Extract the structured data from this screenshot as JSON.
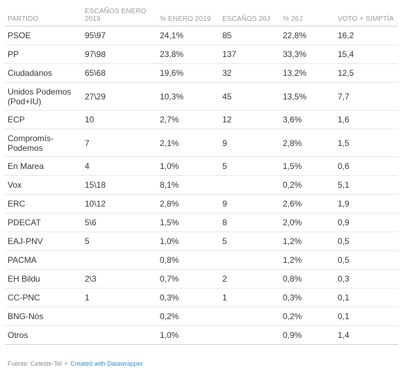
{
  "chart_data": {
    "type": "table",
    "columns": [
      "PARTIDO",
      "ESCAÑOS ENERO 2019",
      "% ENERO 2019",
      "ESCAÑOS 26J",
      "% 26J",
      "VOTO + SIMPTÍA"
    ],
    "rows": [
      [
        "PSOE",
        "95\\97",
        "24,1%",
        "85",
        "22,8%",
        "16,2"
      ],
      [
        "PP",
        "97\\98",
        "23,8%",
        "137",
        "33,3%",
        "15,4"
      ],
      [
        "Ciudadanos",
        "65\\68",
        "19,6%",
        "32",
        "13,2%",
        "12,5"
      ],
      [
        "Unidos Podemos (Pod+IU)",
        "27\\29",
        "10,3%",
        "45",
        "13,5%",
        "7,7"
      ],
      [
        "ECP",
        "10",
        "2,7%",
        "12",
        "3,6%",
        "1,6"
      ],
      [
        "Compromís-Podemos",
        "7",
        "2,1%",
        "9",
        "2,8%",
        "1,5"
      ],
      [
        "En Marea",
        "4",
        "1,0%",
        "5",
        "1,5%",
        "0,6"
      ],
      [
        "Vox",
        "15\\18",
        "8,1%",
        "",
        "0,2%",
        "5,1"
      ],
      [
        "ERC",
        "10\\12",
        "2,8%",
        "9",
        "2,6%",
        "1,9"
      ],
      [
        "PDECAT",
        "5\\6",
        "1,5%",
        "8",
        "2,0%",
        "0,9"
      ],
      [
        "EAJ-PNV",
        "5",
        "1,0%",
        "5",
        "1,2%",
        "0,5"
      ],
      [
        "PACMA",
        "",
        "0,8%",
        "",
        "1,2%",
        "0,5"
      ],
      [
        "EH Bildu",
        "2\\3",
        "0,7%",
        "2",
        "0,8%",
        "0,3"
      ],
      [
        "CC-PNC",
        "1",
        "0,3%",
        "1",
        "0,3%",
        "0,1"
      ],
      [
        "BNG-Nós",
        "",
        "0,2%",
        "",
        "0,2%",
        "0,1"
      ],
      [
        "Otros",
        "",
        "1,0%",
        "",
        "0,9%",
        "1,4"
      ]
    ]
  },
  "footer": {
    "source": "Fuente: Celeste-Tel",
    "separator": "•",
    "credit": "Created with Datawrapper"
  }
}
